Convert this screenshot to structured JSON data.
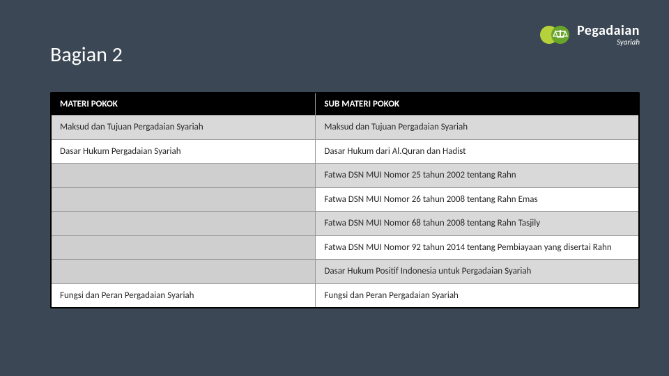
{
  "title": "Bagian 2",
  "logo": {
    "main": "Pegadaian",
    "sub": "Syariah"
  },
  "table": {
    "columns": [
      "MATERI POKOK",
      "SUB MATERI POKOK"
    ],
    "col_widths": [
      "45%",
      "55%"
    ],
    "header_bg": "#000000",
    "header_color": "#ffffff",
    "border_color": "#999999",
    "rows": [
      {
        "c1": "Maksud dan Tujuan Pergadaian Syariah",
        "c2": "Maksud dan Tujuan Pergadaian Syariah",
        "c1_bg": "shade",
        "c2_bg": "shade"
      },
      {
        "c1": "Dasar Hukum Pergadaian Syariah",
        "c2": "Dasar Hukum dari Al.Quran dan Hadist",
        "c1_bg": "white",
        "c2_bg": "white"
      },
      {
        "c1": "",
        "c2": "Fatwa DSN MUI Nomor 25 tahun 2002 tentang Rahn",
        "c1_bg": "shade-alt",
        "c2_bg": "shade"
      },
      {
        "c1": "",
        "c2": "Fatwa DSN MUI Nomor 26 tahun 2008 tentang Rahn Emas",
        "c1_bg": "shade-alt",
        "c2_bg": "white"
      },
      {
        "c1": "",
        "c2": "Fatwa DSN MUI Nomor 68 tahun 2008 tentang Rahn Tasjily",
        "c1_bg": "shade-alt",
        "c2_bg": "shade"
      },
      {
        "c1": "",
        "c2": "Fatwa DSN MUI Nomor 92 tahun 2014 tentang Pembiayaan yang disertai Rahn",
        "c1_bg": "shade-alt",
        "c2_bg": "white"
      },
      {
        "c1": "",
        "c2": "Dasar Hukum Positif Indonesia untuk Pergadaian Syariah",
        "c1_bg": "shade-alt",
        "c2_bg": "shade"
      },
      {
        "c1": "Fungsi dan Peran Pergadaian Syariah",
        "c2": "Fungsi dan Peran Pergadaian Syariah",
        "c1_bg": "white",
        "c2_bg": "white"
      }
    ]
  },
  "colors": {
    "page_bg": "#3b4754",
    "logo_green_dark": "#6aa52b",
    "logo_green_light": "#b6d23a"
  }
}
